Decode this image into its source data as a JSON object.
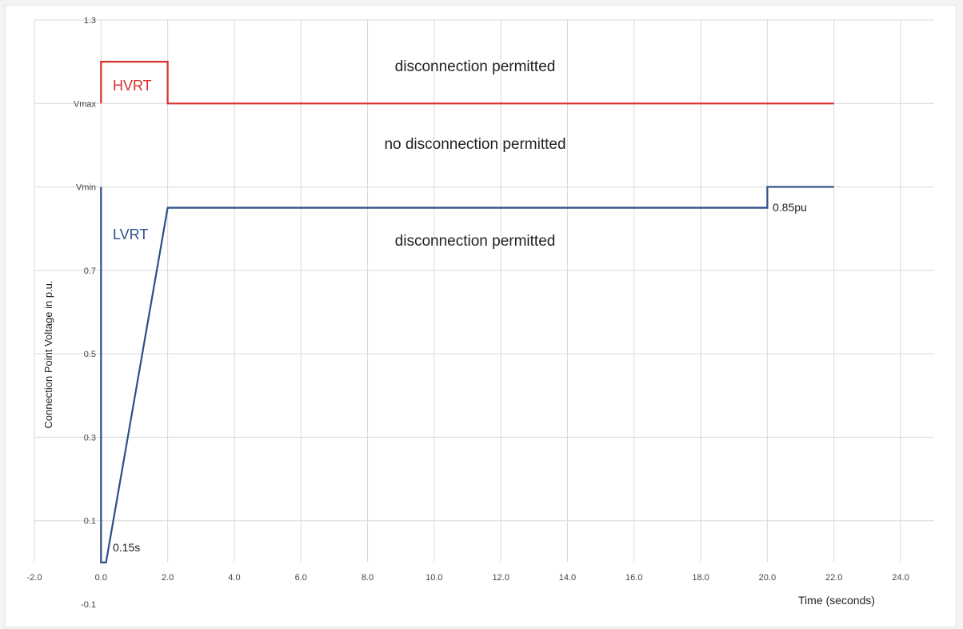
{
  "chart_data": {
    "type": "line",
    "xlabel": "Time (seconds)",
    "ylabel": "Connection Point Voltage in p.u.",
    "xlim": [
      -2.0,
      24.0
    ],
    "ylim": [
      -0.1,
      1.3
    ],
    "x_ticks": [
      "-2.0",
      "0.0",
      "2.0",
      "4.0",
      "6.0",
      "8.0",
      "10.0",
      "12.0",
      "14.0",
      "16.0",
      "18.0",
      "20.0",
      "22.0",
      "24.0"
    ],
    "y_ticks": [
      {
        "value": 1.3,
        "label": "1.3"
      },
      {
        "value": 1.1,
        "label": "Vmax"
      },
      {
        "value": 0.9,
        "label": "Vmin"
      },
      {
        "value": 0.7,
        "label": "0.7"
      },
      {
        "value": 0.5,
        "label": "0.5"
      },
      {
        "value": 0.3,
        "label": "0.3"
      },
      {
        "value": 0.1,
        "label": "0.1"
      },
      {
        "value": -0.1,
        "label": "-0.1"
      }
    ],
    "grid": true,
    "series": [
      {
        "name": "HVRT",
        "color": "#d9302c",
        "points": [
          [
            0.0,
            1.1
          ],
          [
            0.0,
            1.2
          ],
          [
            2.0,
            1.2
          ],
          [
            2.0,
            1.1
          ],
          [
            22.0,
            1.1
          ]
        ]
      },
      {
        "name": "LVRT",
        "color": "#2c4f86",
        "points": [
          [
            0.0,
            0.9
          ],
          [
            0.0,
            0.0
          ],
          [
            0.15,
            0.0
          ],
          [
            2.0,
            0.85
          ],
          [
            20.0,
            0.85
          ],
          [
            20.0,
            0.9
          ],
          [
            22.0,
            0.9
          ]
        ]
      }
    ],
    "annotations": {
      "upper_region": "disconnection permitted",
      "middle_region": "no disconnection permitted",
      "lower_region": "disconnection permitted",
      "time_label": "0.15s",
      "voltage_label": "0.85pu"
    }
  }
}
